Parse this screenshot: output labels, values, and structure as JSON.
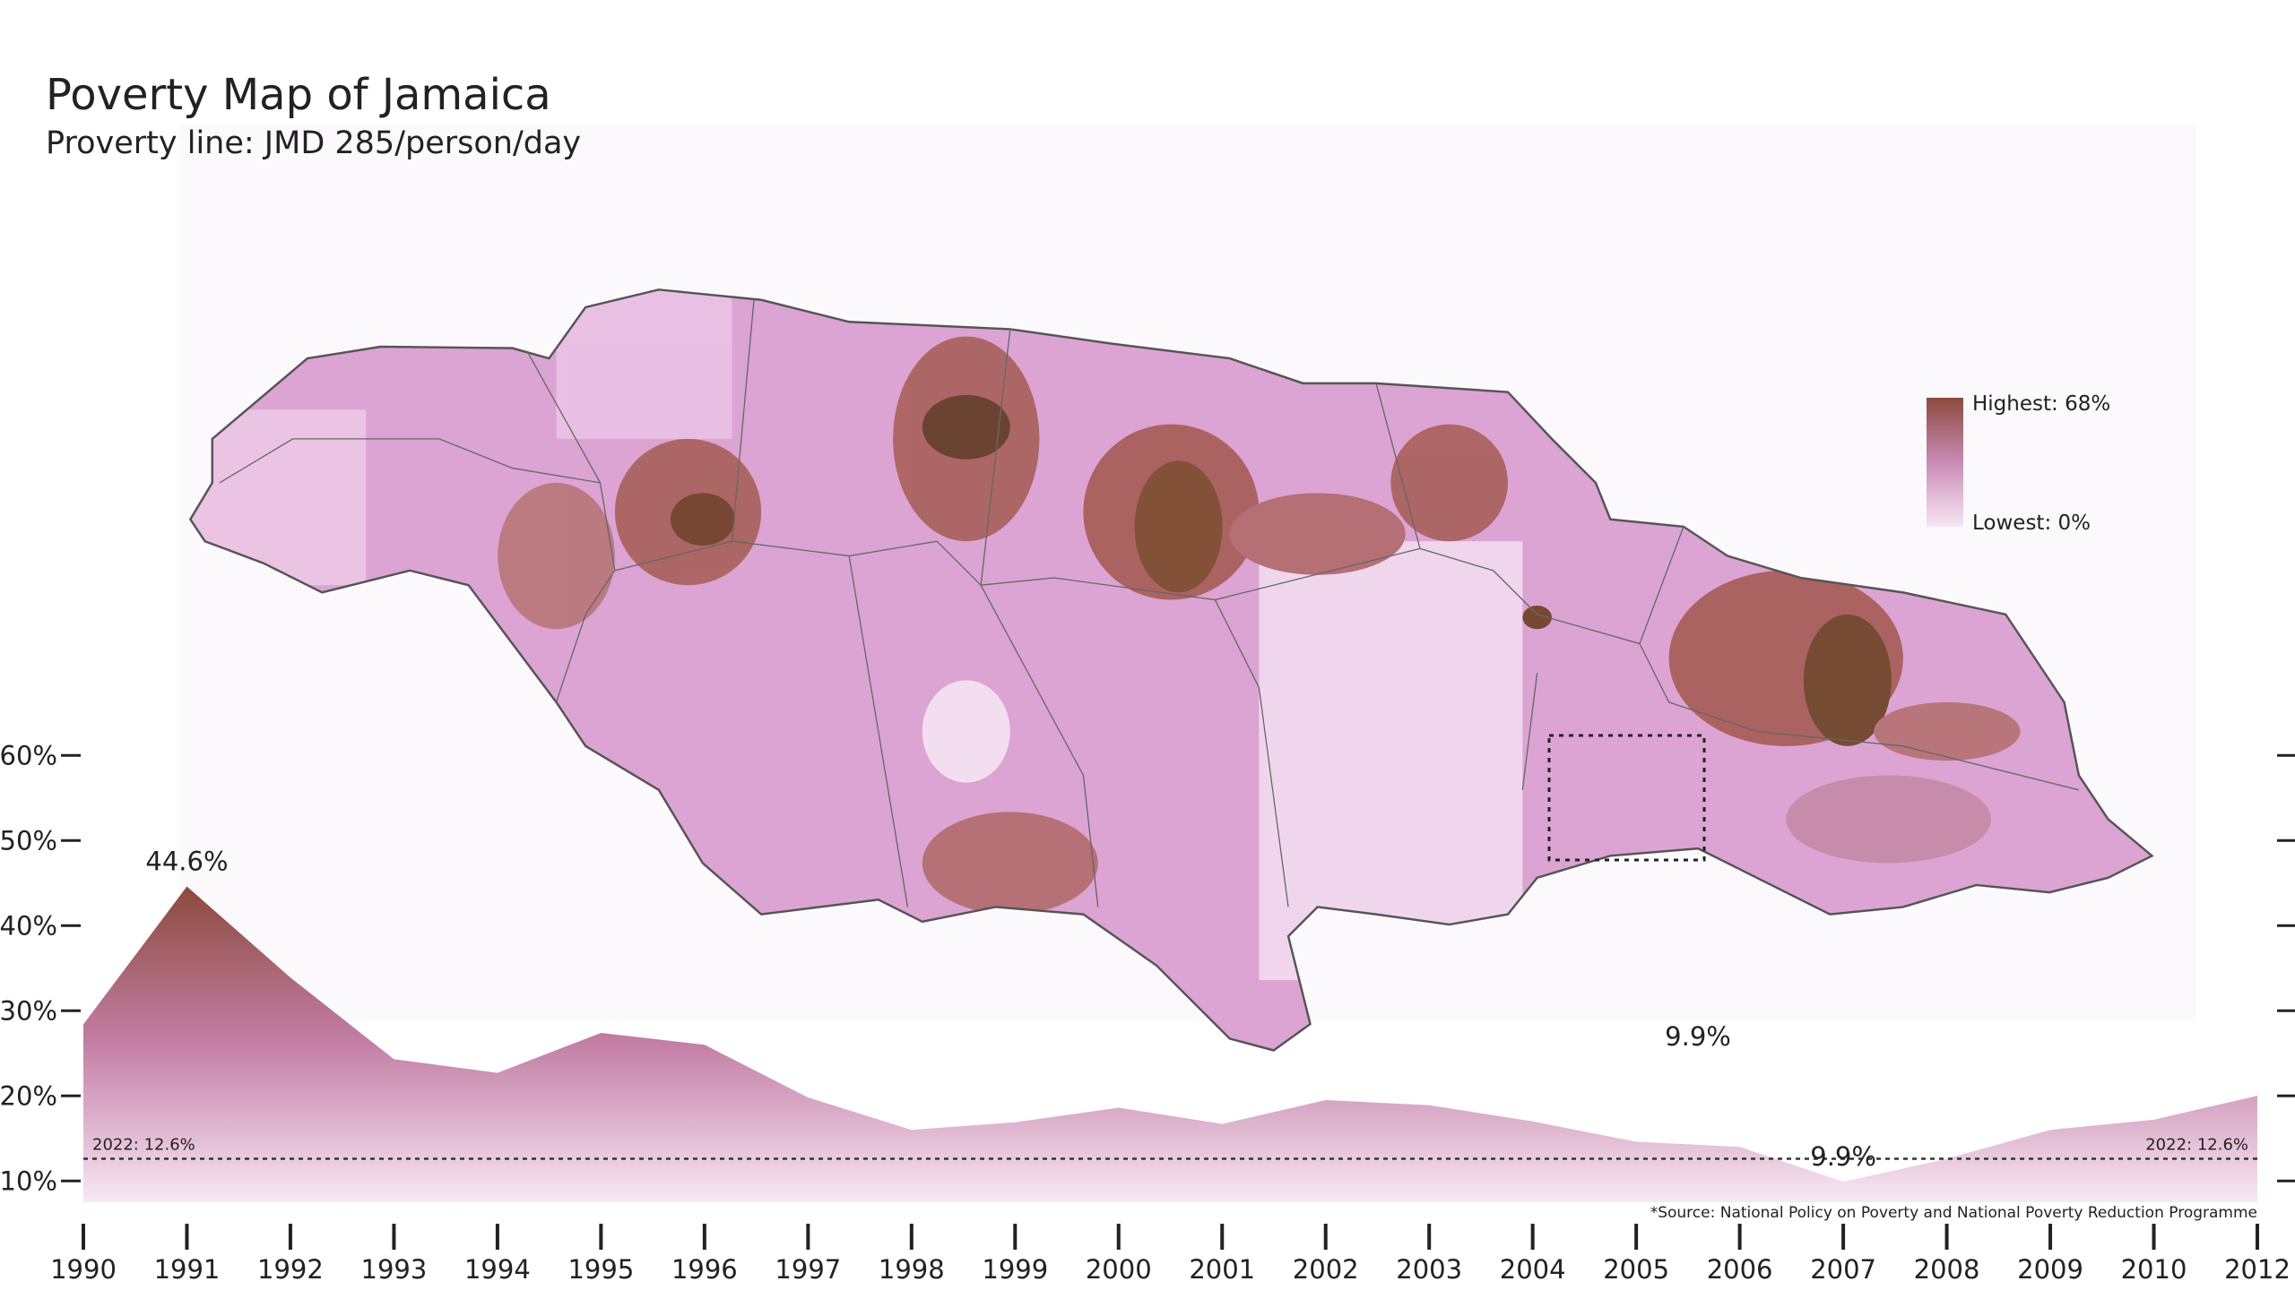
{
  "chart_data": {
    "type": "area",
    "title": "Poverty Map of Jamaica",
    "subtitle": "Proverty line: JMD 285/person/day",
    "source": "*Source: National Policy on Poverty and National Poverty Reduction Programme",
    "map_legend": {
      "max": {
        "value": 68,
        "label": "Highest: 68%"
      },
      "min": {
        "value": 0,
        "label": "Lowest: 0%"
      },
      "colors": [
        "#8c4a3c",
        "#c98bb5",
        "#f7e6f4"
      ]
    },
    "categories": [
      "1990",
      "1991",
      "1992",
      "1993",
      "1994",
      "1995",
      "1996",
      "1997",
      "1998",
      "1999",
      "2000",
      "2001",
      "2002",
      "2003",
      "2004",
      "2005",
      "2006",
      "2007",
      "2008",
      "2009",
      "2010",
      "2012"
    ],
    "values": [
      28.4,
      44.6,
      33.9,
      24.3,
      22.7,
      27.4,
      26.0,
      19.8,
      16.0,
      16.9,
      18.6,
      16.7,
      19.5,
      18.9,
      17.0,
      14.6,
      14.0,
      9.9,
      12.6,
      16.0,
      17.2,
      20.0
    ],
    "value_labels": [
      null,
      "44.6%",
      null,
      null,
      null,
      null,
      null,
      null,
      null,
      null,
      null,
      null,
      null,
      null,
      null,
      null,
      null,
      "9.9%",
      null,
      null,
      null,
      null
    ],
    "color": "#c27ba0",
    "gradient": [
      "#8c4a3c",
      "#c47fa6",
      "#f7e8f4"
    ],
    "reference_line": {
      "value": 12.6,
      "label": "2022: 12.6%"
    },
    "ylim": [
      7.5,
      62.5
    ],
    "yticks": [
      {
        "value": 10,
        "label": "10%"
      },
      {
        "value": 20,
        "label": "20%"
      },
      {
        "value": 30,
        "label": "30%"
      },
      {
        "value": 40,
        "label": "40%"
      },
      {
        "value": 50,
        "label": "50%"
      },
      {
        "value": 60,
        "label": "60%"
      }
    ],
    "grid": false
  }
}
